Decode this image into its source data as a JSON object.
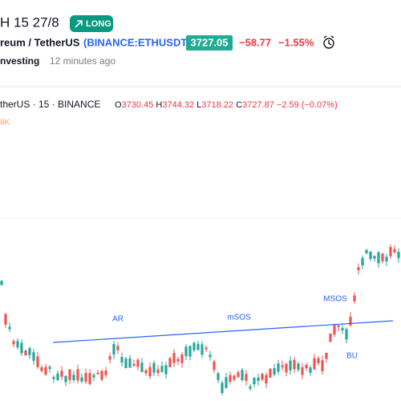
{
  "header": {
    "title": "H 15 27/8",
    "badge": "LONG",
    "symbol_name": "reum / TetherUS",
    "symbol_exchange": "(BINANCE:ETHUSDT)",
    "price": "3727.05",
    "change": "−58.77",
    "change_pct": "−1.55%",
    "author": "nvesting",
    "time": "12 minutes ago"
  },
  "chart": {
    "symbol": "therUS · 15 · BINANCE",
    "ohlc": [
      {
        "label": "O",
        "value": "3730.45"
      },
      {
        "label": "H",
        "value": "3744.32"
      },
      {
        "label": "L",
        "value": "3718.22"
      },
      {
        "label": "C",
        "value": "3727.87"
      }
    ],
    "change": "−2.59 (−0.07%)",
    "volume": "8K",
    "annotations": [
      "AR",
      "mSOS",
      "MSOS",
      "BU"
    ]
  }
}
